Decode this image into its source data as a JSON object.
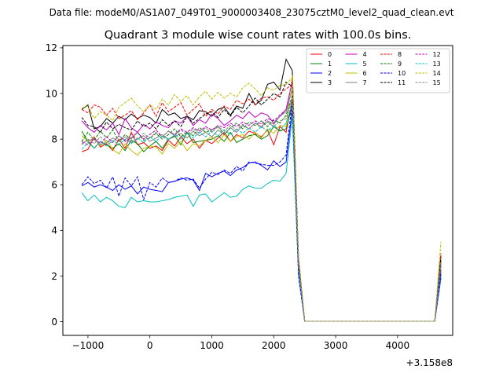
{
  "figure": {
    "suptitle": "Data file: modeM0/AS1A07_049T01_9000003408_23075cztM0_level2_quad_clean.evt",
    "title": "Quadrant 3 module wise count rates with 100.0s bins."
  },
  "chart_data": {
    "type": "line",
    "title": "Quadrant 3 module wise count rates with 100.0s bins.",
    "xlabel": "",
    "ylabel": "",
    "x_offset_label": "+3.158e8",
    "xlim": [
      -1405,
      4890
    ],
    "ylim": [
      -0.6,
      12.1
    ],
    "xticks": [
      -1000,
      0,
      1000,
      2000,
      3000,
      4000
    ],
    "yticks": [
      0,
      2,
      4,
      6,
      8,
      10,
      12
    ],
    "grid": false,
    "legend": {
      "position": "top-right",
      "columns": 4
    },
    "x": [
      -1100,
      -1000,
      -900,
      -800,
      -700,
      -600,
      -500,
      -400,
      -300,
      -200,
      -100,
      0,
      100,
      200,
      300,
      400,
      500,
      600,
      700,
      800,
      900,
      1000,
      1100,
      1200,
      1300,
      1400,
      1500,
      1600,
      1700,
      1800,
      1900,
      2000,
      2100,
      2200,
      2300,
      2400,
      2500,
      4600,
      4700
    ],
    "series": [
      {
        "name": "0",
        "color": "#ff0000",
        "dash": "solid",
        "values": [
          7.45,
          7.55,
          8.1,
          7.65,
          7.8,
          7.5,
          8.0,
          7.6,
          8.3,
          7.75,
          7.85,
          7.6,
          7.7,
          7.5,
          7.95,
          7.7,
          8.1,
          7.8,
          8.0,
          7.6,
          7.95,
          7.8,
          8.05,
          8.3,
          7.9,
          8.2,
          8.05,
          8.35,
          8.25,
          8.1,
          8.4,
          7.75,
          8.55,
          8.3,
          9.8,
          2.4,
          0.02,
          0.02,
          2.2
        ]
      },
      {
        "name": "1",
        "color": "#008000",
        "dash": "solid",
        "values": [
          8.35,
          7.9,
          7.6,
          7.9,
          7.75,
          7.6,
          7.8,
          7.5,
          7.95,
          7.8,
          7.45,
          7.7,
          7.9,
          7.6,
          8.0,
          8.15,
          7.75,
          8.3,
          7.85,
          7.9,
          7.95,
          8.0,
          8.15,
          7.9,
          8.3,
          7.85,
          8.0,
          8.15,
          8.2,
          8.0,
          8.15,
          8.55,
          8.35,
          8.45,
          9.5,
          2.5,
          0.02,
          0.02,
          2.3
        ]
      },
      {
        "name": "2",
        "color": "#0000ff",
        "dash": "solid",
        "values": [
          5.95,
          6.1,
          5.9,
          6.0,
          5.9,
          5.75,
          6.0,
          5.8,
          5.95,
          5.6,
          5.9,
          5.8,
          5.75,
          5.7,
          6.1,
          6.15,
          6.25,
          6.3,
          6.2,
          5.75,
          6.5,
          6.35,
          6.5,
          6.6,
          6.4,
          6.65,
          6.75,
          6.95,
          7.0,
          6.85,
          6.65,
          7.05,
          6.8,
          7.0,
          9.3,
          2.2,
          0.02,
          0.02,
          1.9
        ]
      },
      {
        "name": "3",
        "color": "#000000",
        "dash": "solid",
        "values": [
          9.3,
          9.5,
          8.45,
          8.55,
          8.9,
          8.7,
          9.0,
          8.85,
          9.1,
          8.9,
          9.05,
          8.95,
          8.7,
          9.3,
          9.05,
          9.15,
          8.9,
          9.0,
          8.85,
          9.25,
          9.2,
          9.0,
          9.3,
          9.4,
          9.05,
          9.45,
          9.35,
          10.0,
          9.5,
          9.7,
          10.4,
          10.5,
          10.15,
          11.5,
          11.0,
          2.7,
          0.02,
          0.02,
          2.9
        ]
      },
      {
        "name": "4",
        "color": "#bf00bf",
        "dash": "solid",
        "values": [
          8.8,
          8.5,
          8.3,
          8.6,
          8.4,
          8.7,
          8.2,
          8.9,
          8.5,
          8.3,
          8.65,
          8.45,
          8.75,
          8.6,
          8.5,
          8.8,
          8.7,
          9.0,
          8.6,
          8.85,
          8.7,
          9.1,
          8.9,
          8.6,
          8.8,
          9.05,
          8.9,
          9.2,
          8.95,
          9.15,
          9.05,
          8.7,
          9.0,
          9.3,
          10.5,
          2.6,
          0.02,
          0.02,
          2.6
        ]
      },
      {
        "name": "5",
        "color": "#00bfbf",
        "dash": "solid",
        "values": [
          5.65,
          5.3,
          5.55,
          5.25,
          5.45,
          5.3,
          5.05,
          5.0,
          5.45,
          5.25,
          5.3,
          5.25,
          5.25,
          5.3,
          5.35,
          5.45,
          5.5,
          5.55,
          5.05,
          5.55,
          5.6,
          5.25,
          5.45,
          5.65,
          5.45,
          5.5,
          5.8,
          5.95,
          5.85,
          5.85,
          6.05,
          6.2,
          6.15,
          6.5,
          9.0,
          2.1,
          0.02,
          0.02,
          2.0
        ]
      },
      {
        "name": "6",
        "color": "#bfbf00",
        "dash": "solid",
        "values": [
          8.15,
          7.9,
          8.05,
          7.7,
          7.95,
          7.55,
          7.35,
          7.8,
          7.5,
          7.3,
          7.6,
          7.7,
          7.65,
          7.35,
          7.8,
          7.6,
          7.9,
          7.5,
          7.8,
          7.7,
          7.95,
          8.1,
          7.85,
          8.2,
          7.9,
          8.1,
          8.2,
          8.0,
          8.3,
          8.05,
          8.45,
          8.25,
          8.6,
          8.55,
          10.8,
          2.6,
          0.02,
          0.02,
          2.8
        ]
      },
      {
        "name": "7",
        "color": "#808080",
        "dash": "solid",
        "values": [
          7.8,
          7.95,
          8.0,
          7.75,
          7.85,
          8.05,
          7.9,
          8.1,
          7.85,
          8.0,
          8.15,
          7.9,
          8.05,
          8.2,
          8.0,
          8.1,
          8.25,
          8.05,
          8.35,
          8.15,
          8.3,
          8.1,
          8.4,
          8.2,
          8.5,
          8.3,
          8.6,
          8.45,
          8.7,
          8.55,
          8.8,
          8.65,
          9.0,
          9.2,
          10.2,
          2.5,
          0.02,
          0.02,
          2.7
        ]
      },
      {
        "name": "8",
        "color": "#ff0000",
        "dash": "dashed",
        "values": [
          9.3,
          9.15,
          9.5,
          9.4,
          9.05,
          9.35,
          8.9,
          9.05,
          9.25,
          8.85,
          9.15,
          9.5,
          9.0,
          9.6,
          9.2,
          9.4,
          9.6,
          9.05,
          9.3,
          9.55,
          9.0,
          9.3,
          9.1,
          9.45,
          9.3,
          9.7,
          9.55,
          9.75,
          9.5,
          9.8,
          9.85,
          9.7,
          10.0,
          10.2,
          10.4,
          2.8,
          0.02,
          0.02,
          3.0
        ]
      },
      {
        "name": "9",
        "color": "#008000",
        "dash": "dashed",
        "values": [
          7.9,
          8.3,
          7.95,
          8.35,
          8.05,
          8.4,
          7.9,
          8.2,
          8.0,
          8.3,
          7.95,
          8.05,
          8.25,
          8.0,
          8.2,
          8.45,
          8.1,
          8.3,
          8.15,
          8.5,
          8.3,
          8.4,
          8.55,
          8.2,
          8.5,
          8.7,
          8.45,
          8.75,
          8.6,
          8.8,
          8.55,
          8.85,
          8.7,
          9.05,
          9.9,
          2.6,
          0.02,
          0.02,
          2.5
        ]
      },
      {
        "name": "10",
        "color": "#0000ff",
        "dash": "dashed",
        "values": [
          6.0,
          6.35,
          6.05,
          6.2,
          5.85,
          6.35,
          5.5,
          6.3,
          5.95,
          6.35,
          5.35,
          6.1,
          5.9,
          6.3,
          6.1,
          6.15,
          6.3,
          6.2,
          6.25,
          5.85,
          6.25,
          6.55,
          6.45,
          6.65,
          6.5,
          6.8,
          6.6,
          7.0,
          6.95,
          6.9,
          6.85,
          6.85,
          7.0,
          7.3,
          9.7,
          2.0,
          0.02,
          0.02,
          2.1
        ]
      },
      {
        "name": "11",
        "color": "#000000",
        "dash": "dashed",
        "values": [
          8.95,
          8.6,
          8.55,
          8.3,
          8.75,
          8.45,
          8.65,
          8.5,
          8.4,
          8.8,
          8.55,
          8.7,
          8.45,
          8.85,
          8.6,
          8.8,
          8.55,
          9.0,
          8.7,
          8.9,
          9.1,
          9.2,
          8.95,
          9.3,
          9.0,
          9.4,
          9.15,
          9.45,
          9.8,
          9.5,
          9.75,
          10.0,
          9.85,
          10.5,
          10.3,
          2.7,
          0.02,
          0.02,
          2.8
        ]
      },
      {
        "name": "12",
        "color": "#bf00bf",
        "dash": "dashed",
        "values": [
          7.9,
          7.75,
          8.05,
          7.8,
          8.1,
          7.85,
          8.15,
          7.9,
          8.05,
          8.3,
          8.0,
          8.2,
          8.4,
          8.1,
          8.35,
          8.2,
          8.45,
          8.3,
          8.5,
          8.35,
          8.55,
          8.4,
          8.6,
          8.5,
          8.7,
          8.55,
          8.75,
          8.6,
          8.8,
          8.65,
          8.9,
          8.8,
          9.05,
          9.3,
          10.6,
          2.5,
          0.02,
          0.02,
          2.4
        ]
      },
      {
        "name": "13",
        "color": "#00bfbf",
        "dash": "dashed",
        "values": [
          7.55,
          7.85,
          7.6,
          7.9,
          7.7,
          7.95,
          7.75,
          8.0,
          7.8,
          8.05,
          7.85,
          8.1,
          7.9,
          8.15,
          7.95,
          8.2,
          8.0,
          8.25,
          8.05,
          8.3,
          8.1,
          8.35,
          8.15,
          8.4,
          8.2,
          8.45,
          8.25,
          8.5,
          8.3,
          8.55,
          8.35,
          8.6,
          8.4,
          8.7,
          9.6,
          2.4,
          0.02,
          0.02,
          2.5
        ]
      },
      {
        "name": "14",
        "color": "#bfbf00",
        "dash": "dashed",
        "values": [
          9.35,
          9.45,
          8.9,
          9.2,
          9.05,
          8.8,
          9.4,
          9.6,
          9.8,
          9.45,
          9.2,
          9.5,
          9.3,
          9.75,
          9.5,
          9.95,
          9.65,
          9.9,
          9.5,
          9.85,
          10.1,
          9.75,
          10.05,
          9.8,
          10.0,
          9.85,
          10.25,
          10.45,
          10.2,
          9.9,
          10.25,
          10.15,
          10.35,
          10.4,
          10.7,
          2.9,
          0.02,
          0.02,
          3.5
        ]
      },
      {
        "name": "15",
        "color": "#808080",
        "dash": "dashed",
        "values": [
          7.75,
          8.0,
          7.8,
          8.1,
          7.9,
          7.85,
          8.15,
          7.95,
          8.2,
          8.0,
          8.25,
          8.05,
          8.3,
          8.1,
          8.35,
          8.15,
          8.4,
          8.2,
          8.45,
          8.25,
          8.5,
          8.3,
          8.55,
          8.35,
          8.6,
          8.4,
          8.65,
          8.45,
          8.7,
          8.5,
          8.75,
          8.55,
          8.8,
          8.9,
          9.8,
          2.5,
          0.02,
          0.02,
          2.6
        ]
      }
    ]
  }
}
